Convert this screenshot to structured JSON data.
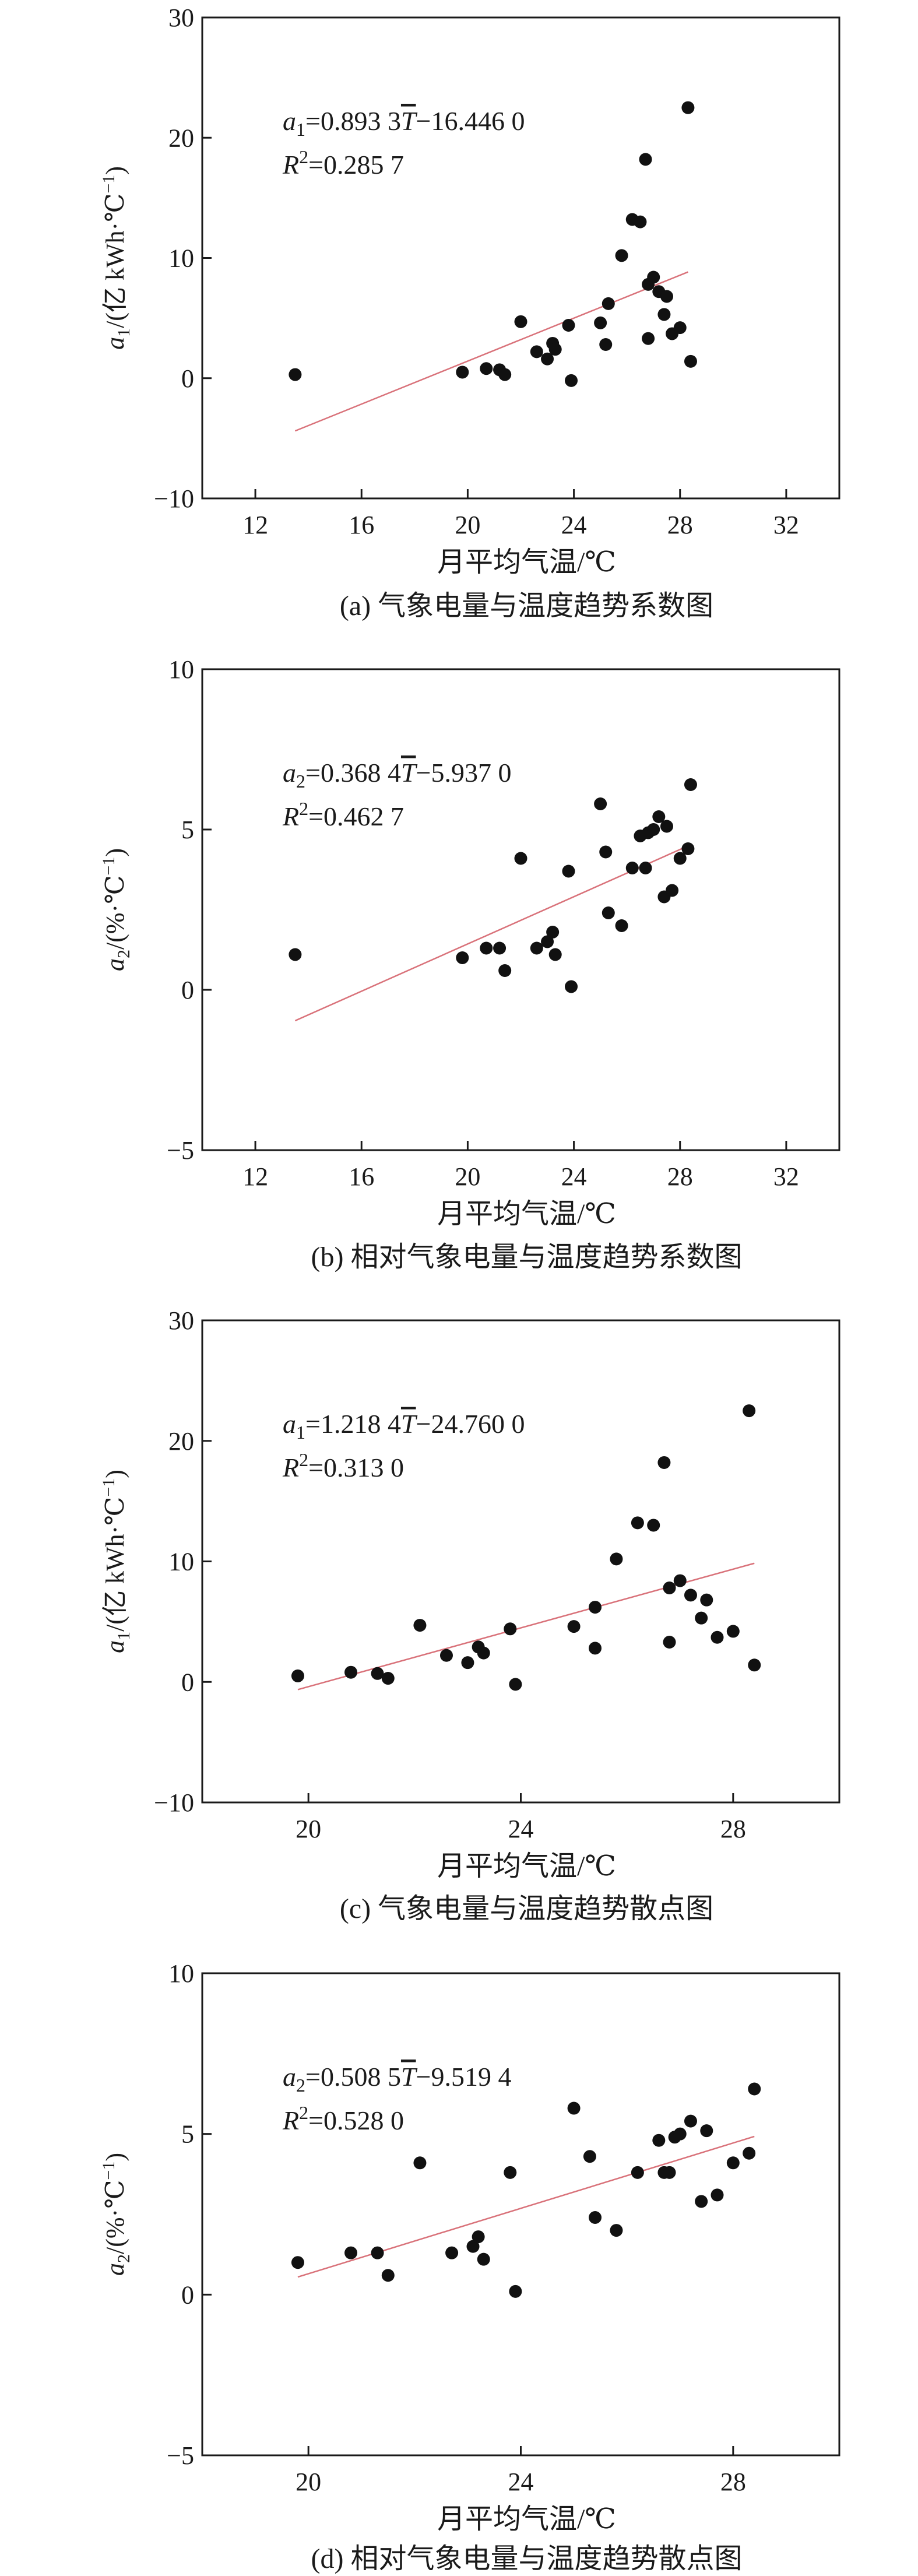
{
  "figures": [
    {
      "equation": {
        "var": "a",
        "sub": "1",
        "left": "=0.893 3",
        "tbar": "T",
        "right": "−16.446 0"
      },
      "r2": {
        "base": "R",
        "sup": "2",
        "rest": "=0.285 7"
      },
      "ylabel": {
        "var": "a",
        "sub": "1",
        "rest": "/(亿 kWh·℃",
        "sup": "−1",
        "tail": ")"
      },
      "caption": "(a) 气象电量与温度趋势系数图"
    },
    {
      "equation": {
        "var": "a",
        "sub": "2",
        "left": "=0.368 4",
        "tbar": "T",
        "right": "−5.937 0"
      },
      "r2": {
        "base": "R",
        "sup": "2",
        "rest": "=0.462 7"
      },
      "ylabel": {
        "var": "a",
        "sub": "2",
        "rest": "/(%·℃",
        "sup": "−1",
        "tail": ")"
      },
      "caption": "(b) 相对气象电量与温度趋势系数图"
    },
    {
      "equation": {
        "var": "a",
        "sub": "1",
        "left": "=1.218 4",
        "tbar": "T",
        "right": "−24.760 0"
      },
      "r2": {
        "base": "R",
        "sup": "2",
        "rest": "=0.313 0"
      },
      "ylabel": {
        "var": "a",
        "sub": "1",
        "rest": "/(亿 kWh·℃",
        "sup": "−1",
        "tail": ")"
      },
      "caption": "(c) 气象电量与温度趋势散点图"
    },
    {
      "equation": {
        "var": "a",
        "sub": "2",
        "left": "=0.508 5",
        "tbar": "T",
        "right": "−9.519 4"
      },
      "r2": {
        "base": "R",
        "sup": "2",
        "rest": "=0.528 0"
      },
      "ylabel": {
        "var": "a",
        "sub": "2",
        "rest": "/(%·℃",
        "sup": "−1",
        "tail": ")"
      },
      "caption": "(d) 相对气象电量与温度趋势散点图"
    }
  ],
  "chart_data": [
    {
      "type": "scatter",
      "xlabel": "月平均气温/℃",
      "xlim": [
        10,
        34
      ],
      "ylim": [
        -10,
        30
      ],
      "xticks": [
        12,
        16,
        20,
        24,
        28,
        32
      ],
      "yticks": [
        -10,
        0,
        10,
        20,
        30
      ],
      "fit": {
        "slope": 0.8933,
        "intercept": -16.446,
        "x_range": [
          13.5,
          28.3
        ],
        "color": "#d9727a"
      },
      "points": [
        [
          13.5,
          0.3
        ],
        [
          19.8,
          0.5
        ],
        [
          20.7,
          0.8
        ],
        [
          21.2,
          0.7
        ],
        [
          21.4,
          0.3
        ],
        [
          22.0,
          4.7
        ],
        [
          22.6,
          2.2
        ],
        [
          23.0,
          1.6
        ],
        [
          23.2,
          2.9
        ],
        [
          23.3,
          2.4
        ],
        [
          23.8,
          4.4
        ],
        [
          23.9,
          -0.2
        ],
        [
          25.0,
          4.6
        ],
        [
          25.2,
          2.8
        ],
        [
          25.3,
          6.2
        ],
        [
          25.8,
          10.2
        ],
        [
          26.2,
          13.2
        ],
        [
          26.5,
          13.0
        ],
        [
          26.7,
          18.2
        ],
        [
          26.8,
          3.3
        ],
        [
          26.8,
          7.8
        ],
        [
          27.0,
          8.4
        ],
        [
          27.2,
          7.2
        ],
        [
          27.4,
          5.3
        ],
        [
          27.5,
          6.8
        ],
        [
          27.7,
          3.7
        ],
        [
          28.0,
          4.2
        ],
        [
          28.3,
          22.5
        ],
        [
          28.4,
          1.4
        ]
      ]
    },
    {
      "type": "scatter",
      "xlabel": "月平均气温/℃",
      "xlim": [
        10,
        34
      ],
      "ylim": [
        -5,
        10
      ],
      "xticks": [
        12,
        16,
        20,
        24,
        28,
        32
      ],
      "yticks": [
        -5,
        0,
        5,
        10
      ],
      "fit": {
        "slope": 0.3684,
        "intercept": -5.937,
        "x_range": [
          13.5,
          28.3
        ],
        "color": "#d9727a"
      },
      "points": [
        [
          13.5,
          1.1
        ],
        [
          19.8,
          1.0
        ],
        [
          20.7,
          1.3
        ],
        [
          21.2,
          1.3
        ],
        [
          21.4,
          0.6
        ],
        [
          22.0,
          4.1
        ],
        [
          22.6,
          1.3
        ],
        [
          23.0,
          1.5
        ],
        [
          23.2,
          1.8
        ],
        [
          23.3,
          1.1
        ],
        [
          23.8,
          3.7
        ],
        [
          23.9,
          0.1
        ],
        [
          25.0,
          5.8
        ],
        [
          25.2,
          4.3
        ],
        [
          25.3,
          2.4
        ],
        [
          25.8,
          2.0
        ],
        [
          26.2,
          3.8
        ],
        [
          26.5,
          4.8
        ],
        [
          26.7,
          3.8
        ],
        [
          26.8,
          4.9
        ],
        [
          27.0,
          5.0
        ],
        [
          27.2,
          5.4
        ],
        [
          27.4,
          2.9
        ],
        [
          27.5,
          5.1
        ],
        [
          27.7,
          3.1
        ],
        [
          28.0,
          4.1
        ],
        [
          28.3,
          4.4
        ],
        [
          28.4,
          6.4
        ]
      ]
    },
    {
      "type": "scatter",
      "xlabel": "月平均气温/℃",
      "xlim": [
        18,
        30
      ],
      "ylim": [
        -10,
        30
      ],
      "xticks": [
        20,
        24,
        28
      ],
      "yticks": [
        -10,
        0,
        10,
        20,
        30
      ],
      "fit": {
        "slope": 1.2184,
        "intercept": -24.76,
        "x_range": [
          19.8,
          28.4
        ],
        "color": "#d9727a"
      },
      "points": [
        [
          19.8,
          0.5
        ],
        [
          20.8,
          0.8
        ],
        [
          21.3,
          0.7
        ],
        [
          21.5,
          0.3
        ],
        [
          22.1,
          4.7
        ],
        [
          22.6,
          2.2
        ],
        [
          23.0,
          1.6
        ],
        [
          23.2,
          2.9
        ],
        [
          23.3,
          2.4
        ],
        [
          23.8,
          4.4
        ],
        [
          23.9,
          -0.2
        ],
        [
          25.0,
          4.6
        ],
        [
          25.4,
          2.8
        ],
        [
          25.4,
          6.2
        ],
        [
          25.8,
          10.2
        ],
        [
          26.2,
          13.2
        ],
        [
          26.5,
          13.0
        ],
        [
          26.7,
          18.2
        ],
        [
          26.8,
          3.3
        ],
        [
          26.8,
          7.8
        ],
        [
          27.0,
          8.4
        ],
        [
          27.2,
          7.2
        ],
        [
          27.4,
          5.3
        ],
        [
          27.5,
          6.8
        ],
        [
          27.7,
          3.7
        ],
        [
          28.0,
          4.2
        ],
        [
          28.3,
          22.5
        ],
        [
          28.4,
          1.4
        ]
      ]
    },
    {
      "type": "scatter",
      "xlabel": "月平均气温/℃",
      "xlim": [
        18,
        30
      ],
      "ylim": [
        -5,
        10
      ],
      "xticks": [
        20,
        24,
        28
      ],
      "yticks": [
        -5,
        0,
        5,
        10
      ],
      "fit": {
        "slope": 0.5085,
        "intercept": -9.5194,
        "x_range": [
          19.8,
          28.4
        ],
        "color": "#d9727a"
      },
      "points": [
        [
          19.8,
          1.0
        ],
        [
          20.8,
          1.3
        ],
        [
          21.3,
          1.3
        ],
        [
          21.5,
          0.6
        ],
        [
          22.1,
          4.1
        ],
        [
          22.7,
          1.3
        ],
        [
          23.1,
          1.5
        ],
        [
          23.2,
          1.8
        ],
        [
          23.3,
          1.1
        ],
        [
          23.8,
          3.8
        ],
        [
          23.9,
          0.1
        ],
        [
          25.0,
          5.8
        ],
        [
          25.3,
          4.3
        ],
        [
          25.4,
          2.4
        ],
        [
          25.8,
          2.0
        ],
        [
          26.2,
          3.8
        ],
        [
          26.6,
          4.8
        ],
        [
          26.7,
          3.8
        ],
        [
          26.8,
          3.8
        ],
        [
          26.9,
          4.9
        ],
        [
          27.0,
          5.0
        ],
        [
          27.2,
          5.4
        ],
        [
          27.4,
          2.9
        ],
        [
          27.5,
          5.1
        ],
        [
          27.7,
          3.1
        ],
        [
          28.0,
          4.1
        ],
        [
          28.3,
          4.4
        ],
        [
          28.4,
          6.4
        ]
      ]
    }
  ]
}
